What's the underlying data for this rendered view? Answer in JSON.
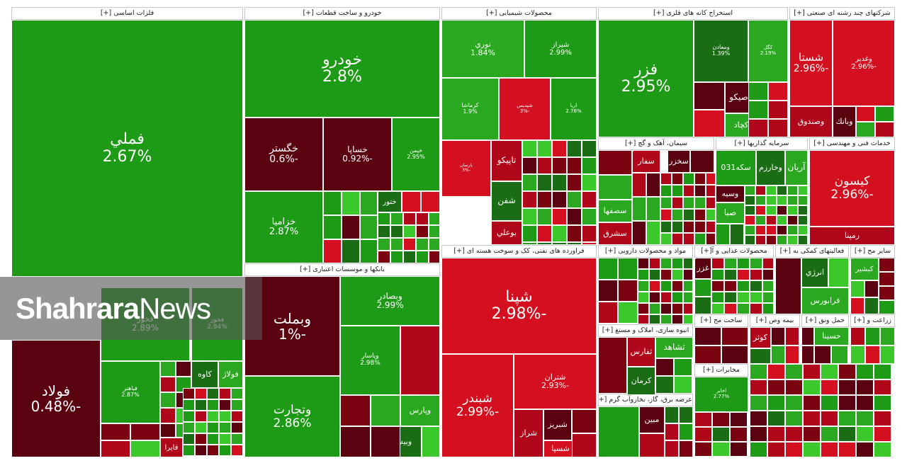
{
  "colors": {
    "pos_strong": "#1e9b16",
    "pos": "#2aa81f",
    "pos_dark": "#1a6d15",
    "pos_light": "#3bc82a",
    "neg": "#b0081a",
    "neg_dark": "#5a0210",
    "neg_bright": "#d40f1f",
    "filler_palette": [
      "#b0081a",
      "#1e9b16",
      "#7a0510",
      "#2aa81f",
      "#5a0210",
      "#1a6d15",
      "#d40f1f",
      "#3bc82a"
    ]
  },
  "watermark": {
    "part_a": "Shahrara",
    "part_b": "News"
  },
  "chart_data": {
    "type": "treemap",
    "sectors": [
      {
        "name": "فلزات اساسی [+]"
      },
      {
        "name": "خودرو و ساخت قطعات [+]"
      },
      {
        "name": "محصولات شیمیایی [+]"
      },
      {
        "name": "استخراج کانه های فلزی [+]"
      },
      {
        "name": "شرکتهای چند رشته ای صنعتی [+]"
      },
      {
        "name": "بانکها و موسسات اعتباری [+]"
      },
      {
        "name": "فراورده های نفتی، کک و سوخت هسته ای [+]"
      },
      {
        "name": "سیمان، آهک و گچ [+]"
      },
      {
        "name": "سرمایه گذاریها [+]"
      },
      {
        "name": "خدمات فنی و مهندسی [+]"
      },
      {
        "name": "مواد و محصولات دارویی [+]"
      },
      {
        "name": "محصولات غذایی و آ[+]"
      },
      {
        "name": "فعالیتهای کمکی به [+]"
      },
      {
        "name": "سایر مح [+]"
      },
      {
        "name": "انبوه سازی، املاک و مستغ [+]"
      },
      {
        "name": "ساخت مح [+]"
      },
      {
        "name": "بیمه وص [+]"
      },
      {
        "name": "حمل ونق [+]"
      },
      {
        "name": "زراعت و [+]"
      },
      {
        "name": "مخابرات [+]"
      },
      {
        "name": "عرضه برق، گاز، بخاروآب گرم [+]"
      }
    ],
    "tiles": [
      {
        "symbol": "فملي",
        "change": "2.67%",
        "value": 2.67
      },
      {
        "symbol": "فولاد",
        "change": "-0.48%",
        "value": -0.48
      },
      {
        "symbol": "فخوز",
        "change": "2.89%",
        "value": 2.89
      },
      {
        "symbol": "فخوز",
        "change": "2.94%",
        "value": 2.94
      },
      {
        "symbol": "فباهنر",
        "change": "2.87%",
        "value": 2.87
      },
      {
        "symbol": "فولاژ",
        "change": "",
        "value": 1.5
      },
      {
        "symbol": "کاوه",
        "change": "",
        "value": 1.2
      },
      {
        "symbol": "فايرا",
        "change": "",
        "value": -1.5
      },
      {
        "symbol": "خودرو",
        "change": "2.8%",
        "value": 2.8
      },
      {
        "symbol": "خگستر",
        "change": "-0.6%",
        "value": -0.6
      },
      {
        "symbol": "خساپا",
        "change": "-0.92%",
        "value": -0.92
      },
      {
        "symbol": "خپمن",
        "change": "2.95%",
        "value": 2.95
      },
      {
        "symbol": "خزامیا",
        "change": "2.87%",
        "value": 2.87
      },
      {
        "symbol": "ختور",
        "change": "",
        "value": 1.0
      },
      {
        "symbol": "نوري",
        "change": "1.84%",
        "value": 1.84
      },
      {
        "symbol": "شيراز",
        "change": "2.99%",
        "value": 2.99
      },
      {
        "symbol": "کرماشا",
        "change": "1.9%",
        "value": 1.9
      },
      {
        "symbol": "شپديس",
        "change": "-3%",
        "value": -3.0
      },
      {
        "symbol": "اريا",
        "change": "2.76%",
        "value": 2.76
      },
      {
        "symbol": "پارسان",
        "change": "-3%",
        "value": -3.0
      },
      {
        "symbol": "تاپيکو",
        "change": "",
        "value": -1.8
      },
      {
        "symbol": "شفن",
        "change": "",
        "value": 1.4
      },
      {
        "symbol": "بوعلي",
        "change": "",
        "value": -1.6
      },
      {
        "symbol": "فزر",
        "change": "2.95%",
        "value": 2.95
      },
      {
        "symbol": "ومعادن",
        "change": "1.39%",
        "value": 1.39
      },
      {
        "symbol": "کگل",
        "change": "2.19%",
        "value": 2.19
      },
      {
        "symbol": "تاصيکو",
        "change": "",
        "value": -1.0
      },
      {
        "symbol": "کچاد",
        "change": "",
        "value": 1.6
      },
      {
        "symbol": "شستا",
        "change": "-2.96%",
        "value": -2.96
      },
      {
        "symbol": "وغدير",
        "change": "-2.96%",
        "value": -2.96
      },
      {
        "symbol": "وصندوق",
        "change": "",
        "value": -1.9
      },
      {
        "symbol": "وبانك",
        "change": "",
        "value": -1.0
      },
      {
        "symbol": "وبملت",
        "change": "-1%",
        "value": -1.0
      },
      {
        "symbol": "وبصادر",
        "change": "2.99%",
        "value": 2.99
      },
      {
        "symbol": "وپاسار",
        "change": "2.98%",
        "value": 2.98
      },
      {
        "symbol": "وتجارت",
        "change": "2.86%",
        "value": 2.86
      },
      {
        "symbol": "وپارس",
        "change": "",
        "value": 1.5
      },
      {
        "symbol": "وبيست",
        "change": "",
        "value": 1.3
      },
      {
        "symbol": "شپنا",
        "change": "-2.98%",
        "value": -2.98
      },
      {
        "symbol": "شبندر",
        "change": "-2.99%",
        "value": -2.99
      },
      {
        "symbol": "شتران",
        "change": "-2.93%",
        "value": -2.93
      },
      {
        "symbol": "شبريز",
        "change": "",
        "value": -0.8
      },
      {
        "symbol": "شراز",
        "change": "",
        "value": -2.2
      },
      {
        "symbol": "شسپا",
        "change": "",
        "value": -2.5
      },
      {
        "symbol": "سفار",
        "change": "",
        "value": -2.0
      },
      {
        "symbol": "سرود",
        "change": "",
        "value": -1.8
      },
      {
        "symbol": "سصفها",
        "change": "",
        "value": 1.5
      },
      {
        "symbol": "سشرق",
        "change": "",
        "value": -1.7
      },
      {
        "symbol": "سخزر",
        "change": "",
        "value": -1.4
      },
      {
        "symbol": "آريان",
        "change": "",
        "value": 1.7
      },
      {
        "symbol": "وخارزم",
        "change": "",
        "value": 1.2
      },
      {
        "symbol": "وسيه",
        "change": "",
        "value": -1.0
      },
      {
        "symbol": "صبا",
        "change": "",
        "value": 1.6
      },
      {
        "symbol": "سکه031",
        "change": "",
        "value": 2.9
      },
      {
        "symbol": "کيسون",
        "change": "-2.96%",
        "value": -2.96
      },
      {
        "symbol": "رمپنا",
        "change": "",
        "value": -2.4
      },
      {
        "symbol": "انرژي",
        "change": "",
        "value": 1.3
      },
      {
        "symbol": "فرابورس",
        "change": "",
        "value": 1.6
      },
      {
        "symbol": "کبشير",
        "change": "",
        "value": 1.5
      },
      {
        "symbol": "حسينا",
        "change": "",
        "value": 1.6
      },
      {
        "symbol": "ثشاهد",
        "change": "",
        "value": 1.5
      },
      {
        "symbol": "ثفارس",
        "change": "",
        "value": -1.5
      },
      {
        "symbol": "کرمان",
        "change": "",
        "value": 1.2
      },
      {
        "symbol": "اخابر",
        "change": "2.77%",
        "value": 2.77
      },
      {
        "symbol": "کوثر",
        "change": "",
        "value": -1.5
      },
      {
        "symbol": "مبين",
        "change": "",
        "value": -1.4
      },
      {
        "symbol": "بالا",
        "change": "",
        "value": 1.6
      },
      {
        "symbol": "غزر",
        "change": "",
        "value": -1.2
      },
      {
        "symbol": "خمحرکه",
        "change": "",
        "value": 1.4
      }
    ]
  }
}
